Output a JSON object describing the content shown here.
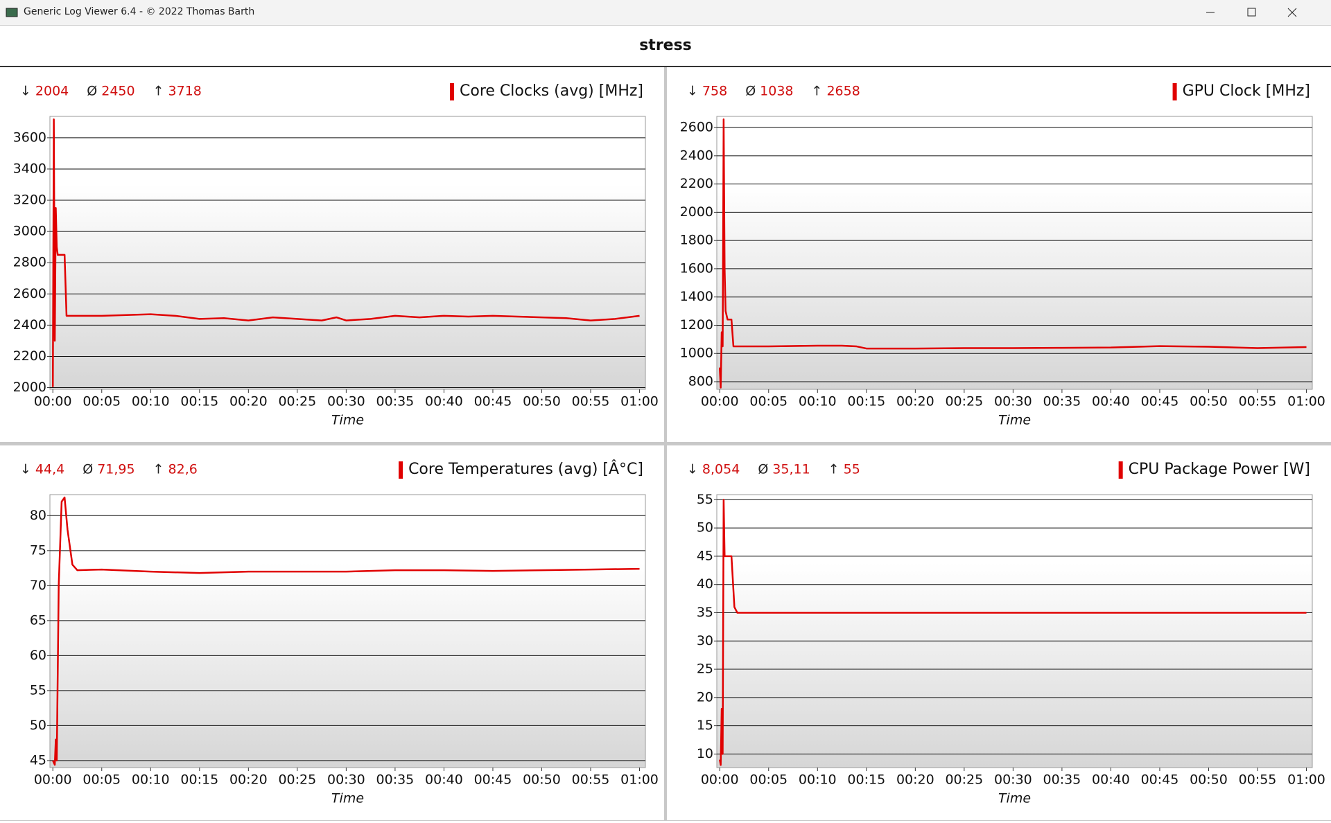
{
  "window_title": "Generic Log Viewer 6.4 - © 2022 Thomas Barth",
  "header": "stress",
  "chart_data": [
    {
      "type": "line",
      "title": "Core Clocks (avg) [MHz]",
      "xlabel": "Time",
      "color": "#e00000",
      "grid": true,
      "stats": [
        {
          "symbol": "↓",
          "value": 2004
        },
        {
          "symbol": "Ø",
          "value": 2450
        },
        {
          "symbol": "↑",
          "value": 3718
        }
      ],
      "xlim": [
        -0.3,
        60.6
      ],
      "ylim": [
        1989,
        3737
      ],
      "xticks": [
        {
          "value": 0,
          "label": "00:00"
        },
        {
          "value": 5,
          "label": "00:05"
        },
        {
          "value": 10,
          "label": "00:10"
        },
        {
          "value": 15,
          "label": "00:15"
        },
        {
          "value": 20,
          "label": "00:20"
        },
        {
          "value": 25,
          "label": "00:25"
        },
        {
          "value": 30,
          "label": "00:30"
        },
        {
          "value": 35,
          "label": "00:35"
        },
        {
          "value": 40,
          "label": "00:40"
        },
        {
          "value": 45,
          "label": "00:45"
        },
        {
          "value": 50,
          "label": "00:50"
        },
        {
          "value": 55,
          "label": "00:55"
        },
        {
          "value": 60,
          "label": "01:00"
        }
      ],
      "yticks": [
        2000,
        2200,
        2400,
        2600,
        2800,
        3000,
        3200,
        3400,
        3600
      ],
      "x": [
        0,
        0.1,
        0.2,
        0.3,
        0.4,
        0.5,
        0.7,
        1.2,
        1.4,
        2.5,
        5,
        7.5,
        10,
        12.5,
        15,
        17.5,
        20,
        22.5,
        25,
        27.5,
        29,
        30,
        32.5,
        35,
        37.5,
        40,
        42.5,
        45,
        47.5,
        50,
        52.5,
        55,
        57.5,
        60
      ],
      "values": [
        2004,
        3718,
        2300,
        3150,
        2900,
        2850,
        2850,
        2850,
        2460,
        2460,
        2460,
        2465,
        2470,
        2460,
        2440,
        2445,
        2430,
        2450,
        2440,
        2430,
        2450,
        2430,
        2440,
        2460,
        2450,
        2460,
        2455,
        2460,
        2455,
        2450,
        2445,
        2430,
        2440,
        2460
      ]
    },
    {
      "type": "line",
      "title": "GPU Clock [MHz]",
      "xlabel": "Time",
      "color": "#e00000",
      "grid": true,
      "stats": [
        {
          "symbol": "↓",
          "value": 758
        },
        {
          "symbol": "Ø",
          "value": 1038
        },
        {
          "symbol": "↑",
          "value": 2658
        }
      ],
      "xlim": [
        -0.3,
        60.6
      ],
      "ylim": [
        746,
        2679
      ],
      "xticks": [
        {
          "value": 0,
          "label": "00:00"
        },
        {
          "value": 5,
          "label": "00:05"
        },
        {
          "value": 10,
          "label": "00:10"
        },
        {
          "value": 15,
          "label": "00:15"
        },
        {
          "value": 20,
          "label": "00:20"
        },
        {
          "value": 25,
          "label": "00:25"
        },
        {
          "value": 30,
          "label": "00:30"
        },
        {
          "value": 35,
          "label": "00:35"
        },
        {
          "value": 40,
          "label": "00:40"
        },
        {
          "value": 45,
          "label": "00:45"
        },
        {
          "value": 50,
          "label": "00:50"
        },
        {
          "value": 55,
          "label": "00:55"
        },
        {
          "value": 60,
          "label": "01:00"
        }
      ],
      "yticks": [
        800,
        1000,
        1200,
        1400,
        1600,
        1800,
        2000,
        2200,
        2400,
        2600
      ],
      "x": [
        0,
        0.1,
        0.2,
        0.3,
        0.4,
        0.5,
        0.6,
        0.8,
        1.2,
        1.4,
        2.5,
        5,
        10,
        12.5,
        14,
        15,
        20,
        25,
        30,
        35,
        40,
        45,
        50,
        55,
        60
      ],
      "values": [
        900,
        758,
        1150,
        1050,
        2658,
        1600,
        1300,
        1240,
        1240,
        1050,
        1050,
        1050,
        1055,
        1055,
        1050,
        1035,
        1035,
        1038,
        1038,
        1040,
        1042,
        1052,
        1048,
        1038,
        1045
      ]
    },
    {
      "type": "line",
      "title": "Core Temperatures (avg) [Â°C]",
      "xlabel": "Time",
      "color": "#e00000",
      "grid": true,
      "stats": [
        {
          "symbol": "↓",
          "value": 44.4,
          "label": "44,4"
        },
        {
          "symbol": "Ø",
          "value": 71.95,
          "label": "71,95"
        },
        {
          "symbol": "↑",
          "value": 82.6,
          "label": "82,6"
        }
      ],
      "xlim": [
        -0.3,
        60.6
      ],
      "ylim": [
        44,
        83
      ],
      "xticks": [
        {
          "value": 0,
          "label": "00:00"
        },
        {
          "value": 5,
          "label": "00:05"
        },
        {
          "value": 10,
          "label": "00:10"
        },
        {
          "value": 15,
          "label": "00:15"
        },
        {
          "value": 20,
          "label": "00:20"
        },
        {
          "value": 25,
          "label": "00:25"
        },
        {
          "value": 30,
          "label": "00:30"
        },
        {
          "value": 35,
          "label": "00:35"
        },
        {
          "value": 40,
          "label": "00:40"
        },
        {
          "value": 45,
          "label": "00:45"
        },
        {
          "value": 50,
          "label": "00:50"
        },
        {
          "value": 55,
          "label": "00:55"
        },
        {
          "value": 60,
          "label": "01:00"
        }
      ],
      "yticks": [
        45,
        50,
        55,
        60,
        65,
        70,
        75,
        80
      ],
      "x": [
        0,
        0.2,
        0.3,
        0.4,
        0.6,
        0.9,
        1.2,
        1.5,
        2,
        2.5,
        5,
        10,
        15,
        20,
        25,
        30,
        35,
        40,
        45,
        50,
        55,
        60
      ],
      "values": [
        45,
        44.4,
        48,
        45,
        70,
        82,
        82.6,
        78,
        73,
        72.2,
        72.3,
        72,
        71.8,
        72,
        72,
        72,
        72.2,
        72.2,
        72.1,
        72.2,
        72.3,
        72.4
      ]
    },
    {
      "type": "line",
      "title": "CPU Package Power [W]",
      "xlabel": "Time",
      "color": "#e00000",
      "grid": true,
      "stats": [
        {
          "symbol": "↓",
          "value": 8.054,
          "label": "8,054"
        },
        {
          "symbol": "Ø",
          "value": 35.11,
          "label": "35,11"
        },
        {
          "symbol": "↑",
          "value": 55
        }
      ],
      "xlim": [
        -0.3,
        60.6
      ],
      "ylim": [
        7.6,
        55.9
      ],
      "xticks": [
        {
          "value": 0,
          "label": "00:00"
        },
        {
          "value": 5,
          "label": "00:05"
        },
        {
          "value": 10,
          "label": "00:10"
        },
        {
          "value": 15,
          "label": "00:15"
        },
        {
          "value": 20,
          "label": "00:20"
        },
        {
          "value": 25,
          "label": "00:25"
        },
        {
          "value": 30,
          "label": "00:30"
        },
        {
          "value": 35,
          "label": "00:35"
        },
        {
          "value": 40,
          "label": "00:40"
        },
        {
          "value": 45,
          "label": "00:45"
        },
        {
          "value": 50,
          "label": "00:50"
        },
        {
          "value": 55,
          "label": "00:55"
        },
        {
          "value": 60,
          "label": "01:00"
        }
      ],
      "yticks": [
        10,
        15,
        20,
        25,
        30,
        35,
        40,
        45,
        50,
        55
      ],
      "x": [
        0,
        0.1,
        0.2,
        0.3,
        0.4,
        0.5,
        1.2,
        1.5,
        1.8,
        60
      ],
      "values": [
        9,
        8.054,
        18,
        10,
        55,
        45,
        45,
        36,
        35,
        35
      ]
    }
  ]
}
